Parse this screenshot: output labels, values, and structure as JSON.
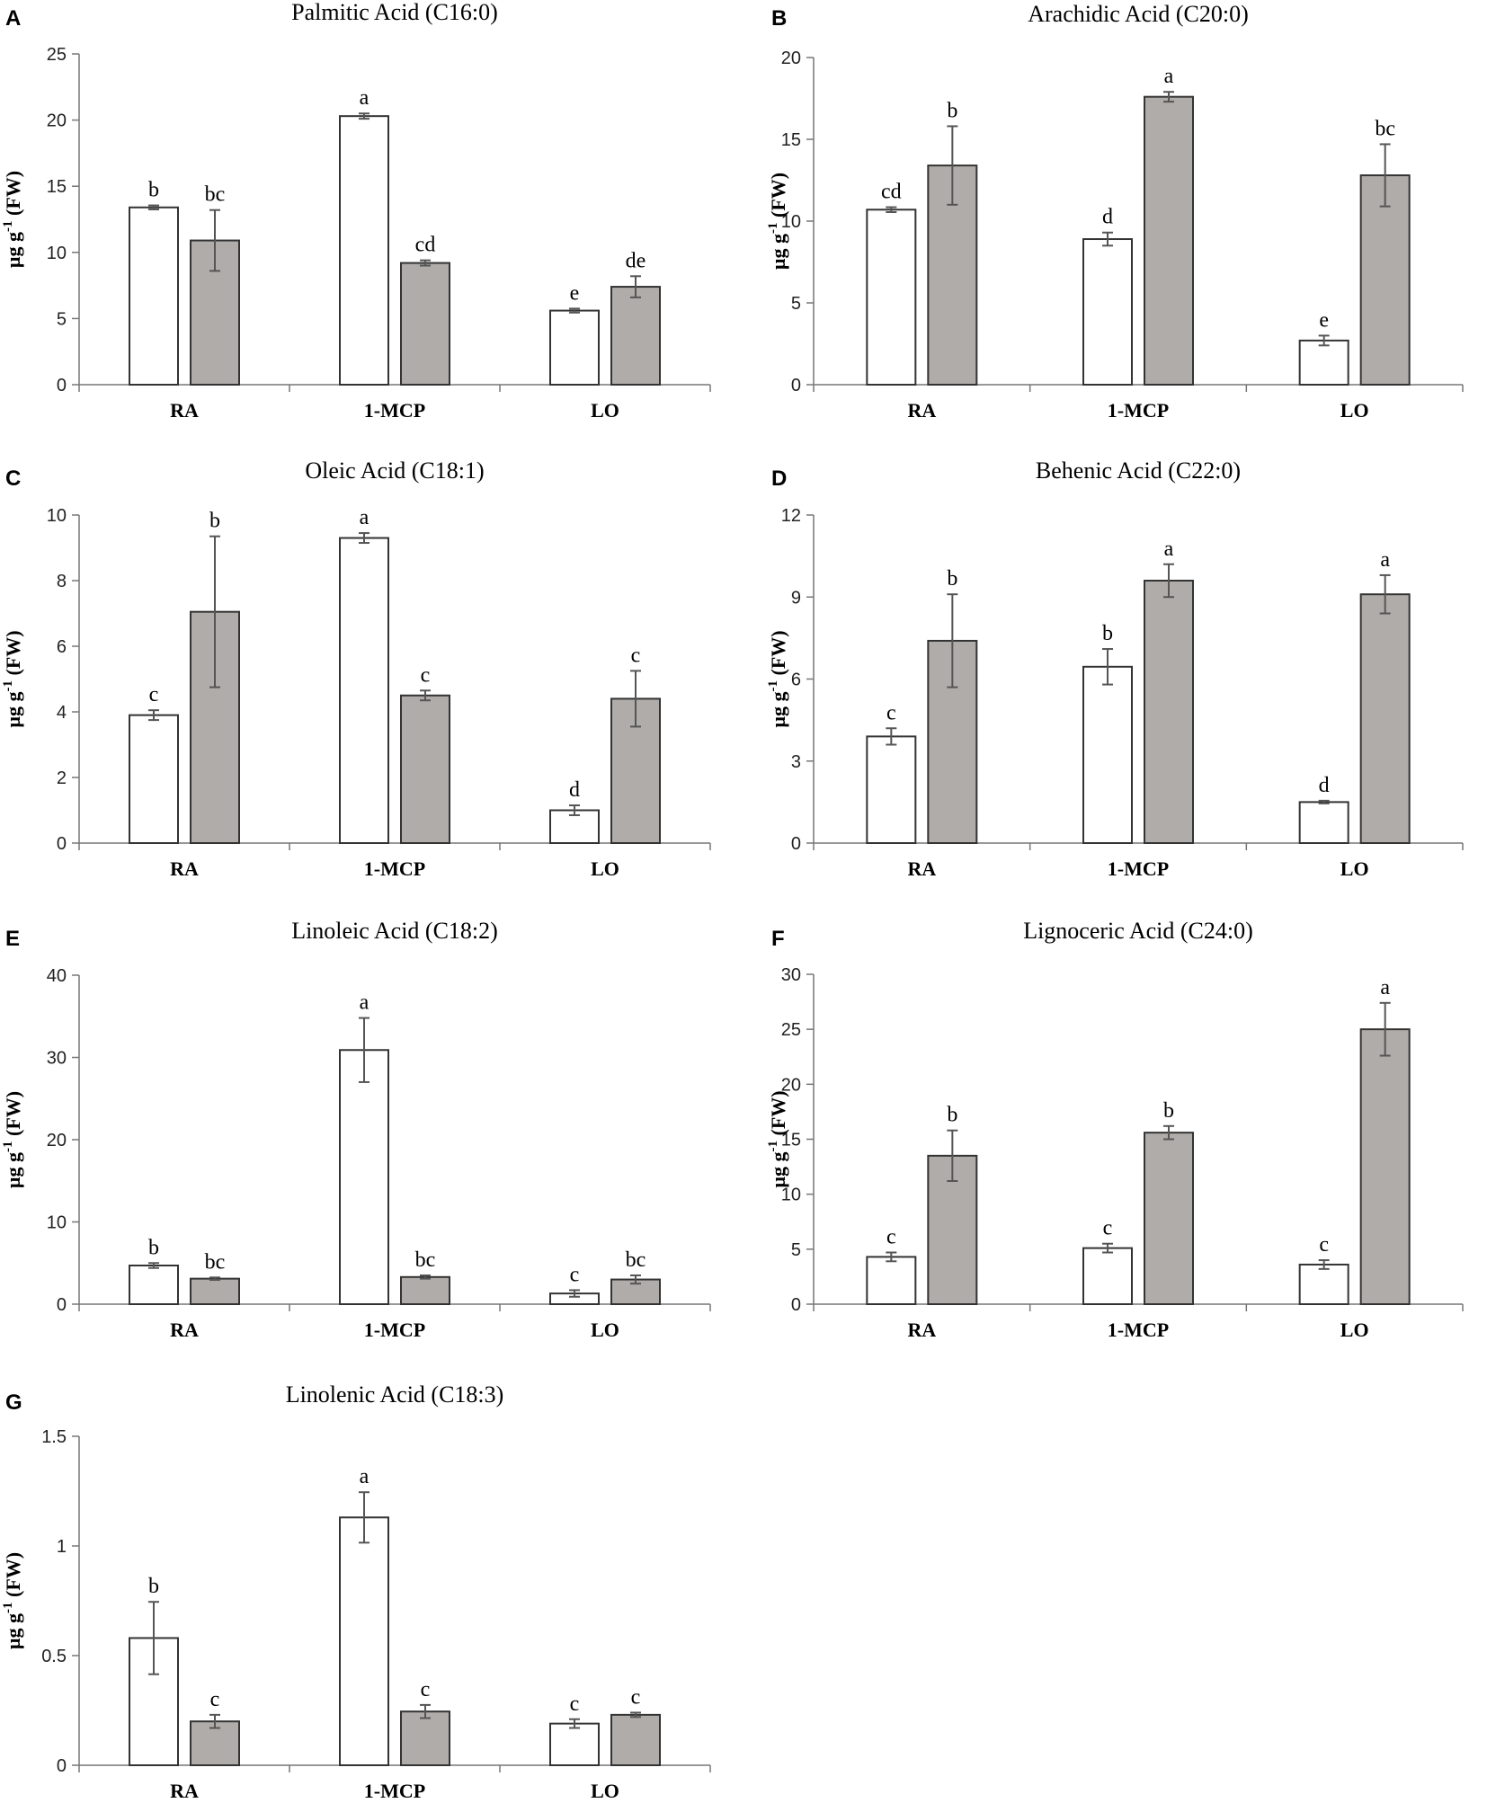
{
  "figure": {
    "y_axis_label_main": "µg g",
    "y_axis_label_sup": "-1",
    "y_axis_label_tail": " (FW)",
    "colors": {
      "white_bar": "#ffffff",
      "gray_bar": "#b0aca9",
      "stroke": "#333333",
      "error": "#555555"
    }
  },
  "chart_data": [
    {
      "type": "bar",
      "panel": "A",
      "title": "Palmitic Acid (C16:0)",
      "categories": [
        "RA",
        "1-MCP",
        "LO"
      ],
      "ylim": [
        0,
        25
      ],
      "yticks": [
        0,
        5,
        10,
        15,
        20,
        25
      ],
      "ytick_labels": [
        "0",
        "5",
        "10",
        "15",
        "20",
        "25"
      ],
      "ylabel": "µg g-1 (FW)",
      "series": [
        {
          "name": "white",
          "values": [
            13.4,
            20.3,
            5.6
          ],
          "errors": [
            0.15,
            0.2,
            0.15
          ],
          "letters": [
            "b",
            "a",
            "e"
          ]
        },
        {
          "name": "gray",
          "values": [
            10.9,
            9.2,
            7.4
          ],
          "errors": [
            2.3,
            0.2,
            0.8
          ],
          "letters": [
            "bc",
            "cd",
            "de"
          ]
        }
      ]
    },
    {
      "type": "bar",
      "panel": "B",
      "title": "Arachidic Acid (C20:0)",
      "categories": [
        "RA",
        "1-MCP",
        "LO"
      ],
      "ylim": [
        0,
        20
      ],
      "yticks": [
        0,
        5,
        10,
        15,
        20
      ],
      "ytick_labels": [
        "0",
        "5",
        "10",
        "15",
        "20"
      ],
      "ylabel": "µg g-1 (FW)",
      "series": [
        {
          "name": "white",
          "values": [
            10.7,
            8.9,
            2.7
          ],
          "errors": [
            0.15,
            0.4,
            0.3
          ],
          "letters": [
            "cd",
            "d",
            "e"
          ]
        },
        {
          "name": "gray",
          "values": [
            13.4,
            17.6,
            12.8
          ],
          "errors": [
            2.4,
            0.3,
            1.9
          ],
          "letters": [
            "b",
            "a",
            "bc"
          ]
        }
      ]
    },
    {
      "type": "bar",
      "panel": "C",
      "title": "Oleic Acid (C18:1)",
      "categories": [
        "RA",
        "1-MCP",
        "LO"
      ],
      "ylim": [
        0,
        10
      ],
      "yticks": [
        0,
        2,
        4,
        6,
        8,
        10
      ],
      "ytick_labels": [
        "0",
        "2",
        "4",
        "6",
        "8",
        "10"
      ],
      "ylabel": "µg g-1 (FW)",
      "series": [
        {
          "name": "white",
          "values": [
            3.9,
            9.3,
            1.0
          ],
          "errors": [
            0.15,
            0.15,
            0.15
          ],
          "letters": [
            "c",
            "a",
            "d"
          ]
        },
        {
          "name": "gray",
          "values": [
            7.05,
            4.5,
            4.4
          ],
          "errors": [
            2.3,
            0.15,
            0.85
          ],
          "letters": [
            "b",
            "c",
            "c"
          ]
        }
      ]
    },
    {
      "type": "bar",
      "panel": "D",
      "title": "Behenic Acid (C22:0)",
      "categories": [
        "RA",
        "1-MCP",
        "LO"
      ],
      "ylim": [
        0,
        12
      ],
      "yticks": [
        0,
        3,
        6,
        9,
        12
      ],
      "ytick_labels": [
        "0",
        "3",
        "6",
        "9",
        "12"
      ],
      "ylabel": "µg g-1 (FW)",
      "series": [
        {
          "name": "white",
          "values": [
            3.9,
            6.45,
            1.5
          ],
          "errors": [
            0.3,
            0.65,
            0.05
          ],
          "letters": [
            "c",
            "b",
            "d"
          ]
        },
        {
          "name": "gray",
          "values": [
            7.4,
            9.6,
            9.1
          ],
          "errors": [
            1.7,
            0.6,
            0.7
          ],
          "letters": [
            "b",
            "a",
            "a"
          ]
        }
      ]
    },
    {
      "type": "bar",
      "panel": "E",
      "title": "Linoleic Acid (C18:2)",
      "categories": [
        "RA",
        "1-MCP",
        "LO"
      ],
      "ylim": [
        0,
        40
      ],
      "yticks": [
        0,
        10,
        20,
        30,
        40
      ],
      "ytick_labels": [
        "0",
        "10",
        "20",
        "30",
        "40"
      ],
      "ylabel": "µg g-1 (FW)",
      "series": [
        {
          "name": "white",
          "values": [
            4.7,
            30.9,
            1.3
          ],
          "errors": [
            0.3,
            3.9,
            0.4
          ],
          "letters": [
            "b",
            "a",
            "c"
          ]
        },
        {
          "name": "gray",
          "values": [
            3.1,
            3.3,
            3.0
          ],
          "errors": [
            0.15,
            0.2,
            0.5
          ],
          "letters": [
            "bc",
            "bc",
            "bc"
          ]
        }
      ]
    },
    {
      "type": "bar",
      "panel": "F",
      "title": "Lignoceric Acid (C24:0)",
      "categories": [
        "RA",
        "1-MCP",
        "LO"
      ],
      "ylim": [
        0,
        30
      ],
      "yticks": [
        0,
        5,
        10,
        15,
        20,
        25,
        30
      ],
      "ytick_labels": [
        "0",
        "5",
        "10",
        "15",
        "20",
        "25",
        "30"
      ],
      "ylabel": "µg g-1 (FW)",
      "series": [
        {
          "name": "white",
          "values": [
            4.3,
            5.1,
            3.6
          ],
          "errors": [
            0.4,
            0.4,
            0.4
          ],
          "letters": [
            "c",
            "c",
            "c"
          ]
        },
        {
          "name": "gray",
          "values": [
            13.5,
            15.6,
            25.0
          ],
          "errors": [
            2.3,
            0.6,
            2.4
          ],
          "letters": [
            "b",
            "b",
            "a"
          ]
        }
      ]
    },
    {
      "type": "bar",
      "panel": "G",
      "title": "Linolenic Acid (C18:3)",
      "categories": [
        "RA",
        "1-MCP",
        "LO"
      ],
      "ylim": [
        0,
        1.5
      ],
      "yticks": [
        0,
        0.5,
        1,
        1.5
      ],
      "ytick_labels": [
        "0",
        "0.5",
        "1",
        "1.5"
      ],
      "ylabel": "µg g-1 (FW)",
      "series": [
        {
          "name": "white",
          "values": [
            0.58,
            1.13,
            0.19
          ],
          "errors": [
            0.165,
            0.115,
            0.02
          ],
          "letters": [
            "b",
            "a",
            "c"
          ]
        },
        {
          "name": "gray",
          "values": [
            0.2,
            0.245,
            0.23
          ],
          "errors": [
            0.03,
            0.03,
            0.01
          ],
          "letters": [
            "c",
            "c",
            "c"
          ]
        }
      ]
    }
  ]
}
